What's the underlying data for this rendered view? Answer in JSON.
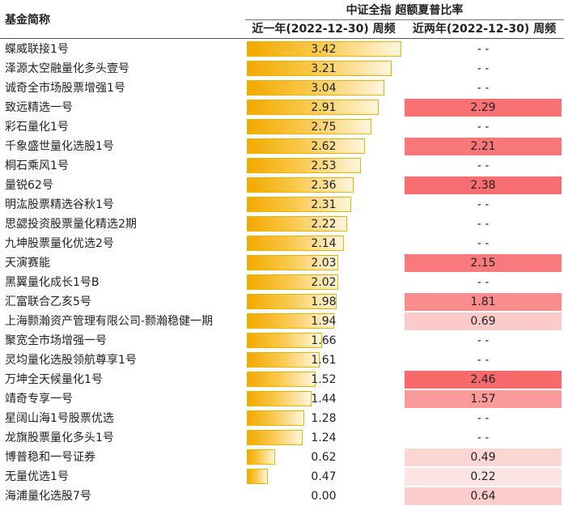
{
  "header": {
    "name_col": "基金简称",
    "group": "中证全指 超额夏普比率",
    "col1": "近一年(2022-12-30) 周频",
    "col2": "近两年(2022-12-30) 周频"
  },
  "bar_colors": {
    "border": "#f0b400",
    "start": "#f2a900",
    "end": "#fff6df"
  },
  "heat_colors": {
    "high": "#f8696b",
    "low": "#fce4e4"
  },
  "scale": {
    "max_col1": 3.42,
    "col2_min": 0.22,
    "col2_max": 2.46
  },
  "rows": [
    {
      "name": "蝶威联接1号",
      "v1": "3.42",
      "v2": "- -"
    },
    {
      "name": "泽源太空融量化多头壹号",
      "v1": "3.21",
      "v2": "- -"
    },
    {
      "name": "诚奇全市场股票增强1号",
      "v1": "3.04",
      "v2": "- -"
    },
    {
      "name": "致远精选一号",
      "v1": "2.91",
      "v2": "2.29"
    },
    {
      "name": "彩石量化1号",
      "v1": "2.75",
      "v2": "- -"
    },
    {
      "name": "千象盛世量化选股1号",
      "v1": "2.62",
      "v2": "2.21"
    },
    {
      "name": "桐石乘风1号",
      "v1": "2.53",
      "v2": "- -"
    },
    {
      "name": "量锐62号",
      "v1": "2.36",
      "v2": "2.38"
    },
    {
      "name": "明汯股票精选谷秋1号",
      "v1": "2.31",
      "v2": "- -"
    },
    {
      "name": "思勰投资股票量化精选2期",
      "v1": "2.22",
      "v2": "- -"
    },
    {
      "name": "九坤股票量化优选2号",
      "v1": "2.14",
      "v2": "- -"
    },
    {
      "name": "天演赛能",
      "v1": "2.03",
      "v2": "2.15"
    },
    {
      "name": "黑翼量化成长1号B",
      "v1": "2.02",
      "v2": "- -"
    },
    {
      "name": "汇富联合乙亥5号",
      "v1": "1.98",
      "v2": "1.81"
    },
    {
      "name": "上海颢瀚资产管理有限公司-颢瀚稳健一期",
      "v1": "1.94",
      "v2": "0.69"
    },
    {
      "name": "聚宽全市场增强一号",
      "v1": "1.66",
      "v2": "- -"
    },
    {
      "name": "灵均量化选股领航尊享1号",
      "v1": "1.61",
      "v2": "- -"
    },
    {
      "name": "万坤全天候量化1号",
      "v1": "1.52",
      "v2": "2.46"
    },
    {
      "name": "靖奇专享一号",
      "v1": "1.44",
      "v2": "1.57"
    },
    {
      "name": "星阔山海1号股票优选",
      "v1": "1.28",
      "v2": "- -"
    },
    {
      "name": "龙旗股票量化多头1号",
      "v1": "1.24",
      "v2": "- -"
    },
    {
      "name": "博普稳和一号证券",
      "v1": "0.62",
      "v2": "0.49"
    },
    {
      "name": "无量优选1号",
      "v1": "0.47",
      "v2": "0.22"
    },
    {
      "name": "海浦量化选股7号",
      "v1": "0.00",
      "v2": "0.64"
    }
  ]
}
